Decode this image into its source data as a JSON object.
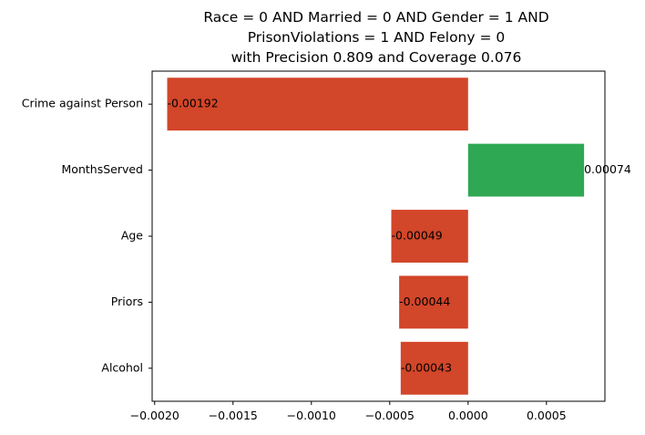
{
  "chart_data": {
    "type": "bar",
    "orientation": "horizontal",
    "title_lines": [
      "Race = 0 AND Married = 0 AND Gender = 1 AND",
      "PrisonViolations = 1 AND Felony = 0",
      "with Precision 0.809 and Coverage 0.076"
    ],
    "categories": [
      "Crime against Person",
      "MonthsServed",
      "Age",
      "Priors",
      "Alcohol"
    ],
    "values": [
      -0.00192,
      0.00074,
      -0.00049,
      -0.00044,
      -0.00043
    ],
    "data_labels": [
      "-0.00192",
      "0.00074",
      "-0.00049",
      "-0.00044",
      "-0.00043"
    ],
    "xticks": [
      -0.002,
      -0.0015,
      -0.001,
      -0.0005,
      0.0,
      0.0005
    ],
    "xtick_labels": [
      "−0.0020",
      "−0.0015",
      "−0.0010",
      "−0.0005",
      "0.0000",
      "0.0005"
    ],
    "xlim": [
      -0.002016,
      0.000873
    ],
    "xlabel": "",
    "ylabel": "",
    "grid": false,
    "colors": {
      "negative": "#d24629",
      "positive": "#2ea853",
      "axis": "#000000"
    }
  }
}
